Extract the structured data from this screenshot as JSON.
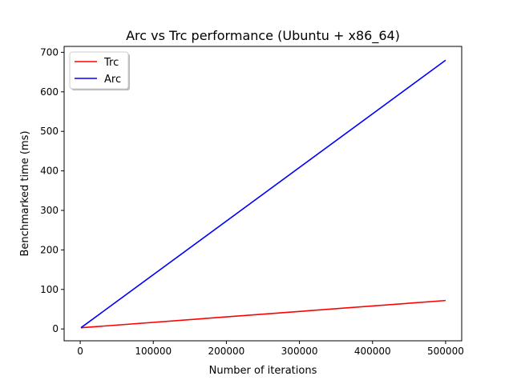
{
  "chart_data": {
    "type": "line",
    "title": "Arc vs Trc performance (Ubuntu + x86_64)",
    "xlabel": "Number of iterations",
    "ylabel": "Benchmarked time (ms)",
    "xlim": [
      -22000,
      522000
    ],
    "ylim": [
      -30,
      715
    ],
    "xticks": [
      0,
      100000,
      200000,
      300000,
      400000,
      500000
    ],
    "yticks": [
      0,
      100,
      200,
      300,
      400,
      500,
      600,
      700
    ],
    "grid": false,
    "legend_position": "top-left",
    "series": [
      {
        "name": "Trc",
        "color": "#ff0000",
        "x": [
          1000,
          500000
        ],
        "y": [
          3,
          72
        ]
      },
      {
        "name": "Arc",
        "color": "#0000ff",
        "x": [
          1000,
          500000
        ],
        "y": [
          3,
          680
        ]
      }
    ]
  }
}
